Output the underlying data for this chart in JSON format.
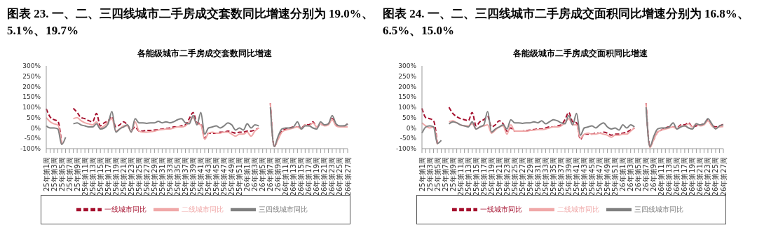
{
  "chart_data": [
    {
      "type": "line",
      "title": "图表 23. 一、二、三四线城市二手房成交套数同比增速分别为 19.0%、5.1%、19.7%",
      "subtitle": "各能级城市二手房成交套数同比增速",
      "categories": [
        "25年第1周",
        null,
        "25年第3周",
        null,
        "25年第5周",
        null,
        "25年第7周",
        null,
        "25年第9周",
        null,
        "25年第11周",
        null,
        "25年第13周",
        null,
        "25年第15周",
        null,
        "25年第17周",
        null,
        "25年第19周",
        null,
        "25年第21周",
        null,
        "25年第23周",
        null,
        "25年第25周",
        null,
        "25年第27周",
        null,
        "25年第29周",
        null,
        "25年第31周",
        null,
        "25年第33周",
        null,
        "25年第35周",
        null,
        "25年第37周",
        null,
        "25年第39周",
        null,
        "25年第41周",
        null,
        "25年第43周",
        null,
        "25年第45周",
        null,
        "25年第47周",
        null,
        "25年第49周",
        null,
        "25年第51周",
        null,
        "26年第1周",
        null,
        "26年第3周",
        null,
        "26年第5周",
        null,
        "26年第7周",
        null,
        "26年第9周",
        null,
        "26年第11周",
        null,
        "26年第13周",
        null,
        "26年第15周",
        null,
        "26年第17周",
        null,
        "26年第19周",
        null,
        "26年第21周",
        null,
        "26年第23周",
        null,
        "26年第25周",
        null,
        "26年第27周"
      ],
      "series": [
        {
          "name": "一线城市同比",
          "color": "#a50f2d",
          "line_style": "dashed",
          "values": [
            93,
            53,
            40,
            33,
            -80,
            null,
            null,
            95,
            75,
            50,
            45,
            35,
            30,
            70,
            10,
            25,
            35,
            55,
            5,
            15,
            30,
            15,
            -10,
            5,
            -15,
            -15,
            -12,
            -12,
            -10,
            -8,
            -5,
            -3,
            0,
            5,
            5,
            10,
            15,
            45,
            75,
            25,
            20,
            -50,
            -25,
            -25,
            -25,
            -20,
            -20,
            -15,
            -20,
            -25,
            -20,
            -20,
            -15,
            -15,
            -10,
            0,
            null,
            null,
            120,
            -90,
            -50,
            -15,
            -5,
            0,
            5,
            5,
            0,
            15,
            15,
            30,
            5,
            15,
            15,
            20,
            45,
            15,
            5,
            10,
            19
          ]
        },
        {
          "name": "二线城市同比",
          "color": "#f0a8a8",
          "line_style": "solid",
          "values": [
            50,
            30,
            20,
            15,
            -80,
            null,
            null,
            45,
            50,
            35,
            25,
            20,
            15,
            30,
            0,
            10,
            30,
            45,
            -15,
            -5,
            10,
            10,
            -20,
            30,
            -15,
            -20,
            -20,
            -18,
            -15,
            -10,
            -8,
            -5,
            -5,
            0,
            5,
            5,
            10,
            30,
            50,
            20,
            15,
            -55,
            -25,
            -20,
            -25,
            -25,
            -20,
            -20,
            -30,
            -40,
            -30,
            -30,
            -20,
            -40,
            -15,
            0,
            null,
            null,
            120,
            -90,
            -55,
            -20,
            -10,
            -5,
            0,
            5,
            -5,
            15,
            10,
            25,
            5,
            20,
            10,
            15,
            40,
            10,
            5,
            5,
            5
          ]
        },
        {
          "name": "三四线城市同比",
          "color": "#808080",
          "line_style": "solid",
          "values": [
            10,
            0,
            0,
            -5,
            -80,
            -45,
            null,
            20,
            25,
            15,
            10,
            5,
            5,
            20,
            -5,
            0,
            20,
            80,
            -20,
            -5,
            5,
            15,
            -20,
            45,
            25,
            25,
            22,
            25,
            25,
            32,
            25,
            30,
            25,
            30,
            40,
            45,
            25,
            20,
            60,
            15,
            75,
            -30,
            0,
            5,
            10,
            0,
            10,
            25,
            15,
            -10,
            0,
            -10,
            20,
            0,
            15,
            10,
            null,
            null,
            100,
            -90,
            -40,
            -5,
            0,
            0,
            5,
            30,
            -5,
            10,
            10,
            0,
            -5,
            30,
            15,
            20,
            60,
            20,
            10,
            10,
            20
          ]
        }
      ],
      "ylim": [
        -100,
        300
      ],
      "yticks": [
        {
          "value": -100,
          "label": "-100%"
        },
        {
          "value": -50,
          "label": "-50%"
        },
        {
          "value": 0,
          "label": "0%"
        },
        {
          "value": 50,
          "label": "50%"
        },
        {
          "value": 100,
          "label": "100%"
        },
        {
          "value": 150,
          "label": "150%"
        },
        {
          "value": 200,
          "label": "200%"
        },
        {
          "value": 250,
          "label": "250%"
        },
        {
          "value": 300,
          "label": "300%"
        }
      ],
      "legend": "bottom",
      "marker": "none"
    },
    {
      "type": "line",
      "title": "图表 24. 一、二、三四线城市二手房成交面积同比增速分别为 16.8%、6.5%、15.0%",
      "subtitle": "各能级城市二手房成交面积同比增速",
      "categories": [
        "25年第1周",
        null,
        "25年第3周",
        null,
        "25年第5周",
        null,
        "25年第7周",
        null,
        "25年第9周",
        null,
        "25年第11周",
        null,
        "25年第13周",
        null,
        "25年第15周",
        null,
        "25年第17周",
        null,
        "25年第19周",
        null,
        "25年第21周",
        null,
        "25年第23周",
        null,
        "25年第25周",
        null,
        "25年第27周",
        null,
        "25年第29周",
        null,
        "25年第31周",
        null,
        "25年第33周",
        null,
        "25年第35周",
        null,
        "25年第37周",
        null,
        "25年第39周",
        null,
        "25年第41周",
        null,
        "25年第43周",
        null,
        "25年第45周",
        null,
        "25年第47周",
        null,
        "25年第49周",
        null,
        "25年第51周",
        null,
        "26年第1周",
        null,
        "26年第3周",
        null,
        "26年第5周",
        null,
        "26年第7周",
        null,
        "26年第9周",
        null,
        "26年第11周",
        null,
        "26年第13周",
        null,
        "26年第15周",
        null,
        "26年第17周",
        null,
        "26年第19周",
        null,
        "26年第21周",
        null,
        "26年第23周",
        null,
        "26年第25周",
        null,
        "26年第27周"
      ],
      "series": [
        {
          "name": "一线城市同比",
          "color": "#a50f2d",
          "line_style": "dashed",
          "values": [
            95,
            50,
            45,
            35,
            -80,
            null,
            null,
            100,
            70,
            55,
            45,
            40,
            35,
            75,
            10,
            30,
            40,
            55,
            5,
            15,
            35,
            20,
            -15,
            0,
            -15,
            -15,
            -15,
            -12,
            -10,
            -8,
            -5,
            -5,
            0,
            5,
            5,
            10,
            15,
            40,
            75,
            30,
            25,
            -55,
            -30,
            -30,
            -30,
            -25,
            -25,
            -20,
            -25,
            -35,
            -30,
            -30,
            -25,
            -20,
            -10,
            0,
            null,
            null,
            120,
            -90,
            -55,
            -20,
            -10,
            0,
            5,
            5,
            0,
            15,
            15,
            25,
            5,
            10,
            15,
            20,
            40,
            15,
            5,
            10,
            17
          ]
        },
        {
          "name": "二线城市同比",
          "color": "#f0a8a8",
          "line_style": "solid",
          "values": [
            25,
            10,
            0,
            5,
            -80,
            null,
            null,
            30,
            35,
            25,
            15,
            10,
            10,
            20,
            -5,
            5,
            10,
            15,
            -25,
            -10,
            5,
            10,
            -30,
            15,
            -15,
            -15,
            -15,
            -15,
            -12,
            -10,
            -8,
            -8,
            -5,
            0,
            5,
            5,
            10,
            25,
            45,
            15,
            15,
            -50,
            -30,
            -25,
            -30,
            -30,
            -25,
            -30,
            -35,
            -45,
            -35,
            -35,
            -30,
            -30,
            -15,
            0,
            null,
            null,
            120,
            -95,
            -55,
            -20,
            -10,
            -5,
            0,
            5,
            -5,
            10,
            10,
            20,
            5,
            20,
            10,
            15,
            35,
            10,
            0,
            5,
            7
          ]
        },
        {
          "name": "三四线城市同比",
          "color": "#808080",
          "line_style": "solid",
          "values": [
            -25,
            5,
            10,
            5,
            -75,
            -60,
            null,
            20,
            30,
            25,
            15,
            10,
            5,
            30,
            -5,
            5,
            15,
            80,
            -20,
            -5,
            5,
            15,
            -5,
            40,
            25,
            25,
            22,
            25,
            25,
            30,
            25,
            35,
            20,
            30,
            40,
            35,
            25,
            20,
            60,
            15,
            70,
            -35,
            0,
            5,
            10,
            0,
            15,
            25,
            5,
            -5,
            0,
            -10,
            15,
            0,
            15,
            5,
            null,
            null,
            100,
            -90,
            -40,
            -5,
            0,
            0,
            5,
            25,
            -5,
            5,
            10,
            0,
            -5,
            20,
            15,
            20,
            45,
            20,
            -5,
            10,
            15
          ]
        }
      ],
      "ylim": [
        -100,
        300
      ],
      "yticks": [
        {
          "value": -100,
          "label": "-100%"
        },
        {
          "value": -50,
          "label": "-50%"
        },
        {
          "value": 0,
          "label": "0%"
        },
        {
          "value": 50,
          "label": "50%"
        },
        {
          "value": 100,
          "label": "100%"
        },
        {
          "value": 150,
          "label": "150%"
        },
        {
          "value": 200,
          "label": "200%"
        },
        {
          "value": 250,
          "label": "250%"
        },
        {
          "value": 300,
          "label": "300%"
        }
      ],
      "legend": "bottom",
      "marker": "none"
    }
  ]
}
